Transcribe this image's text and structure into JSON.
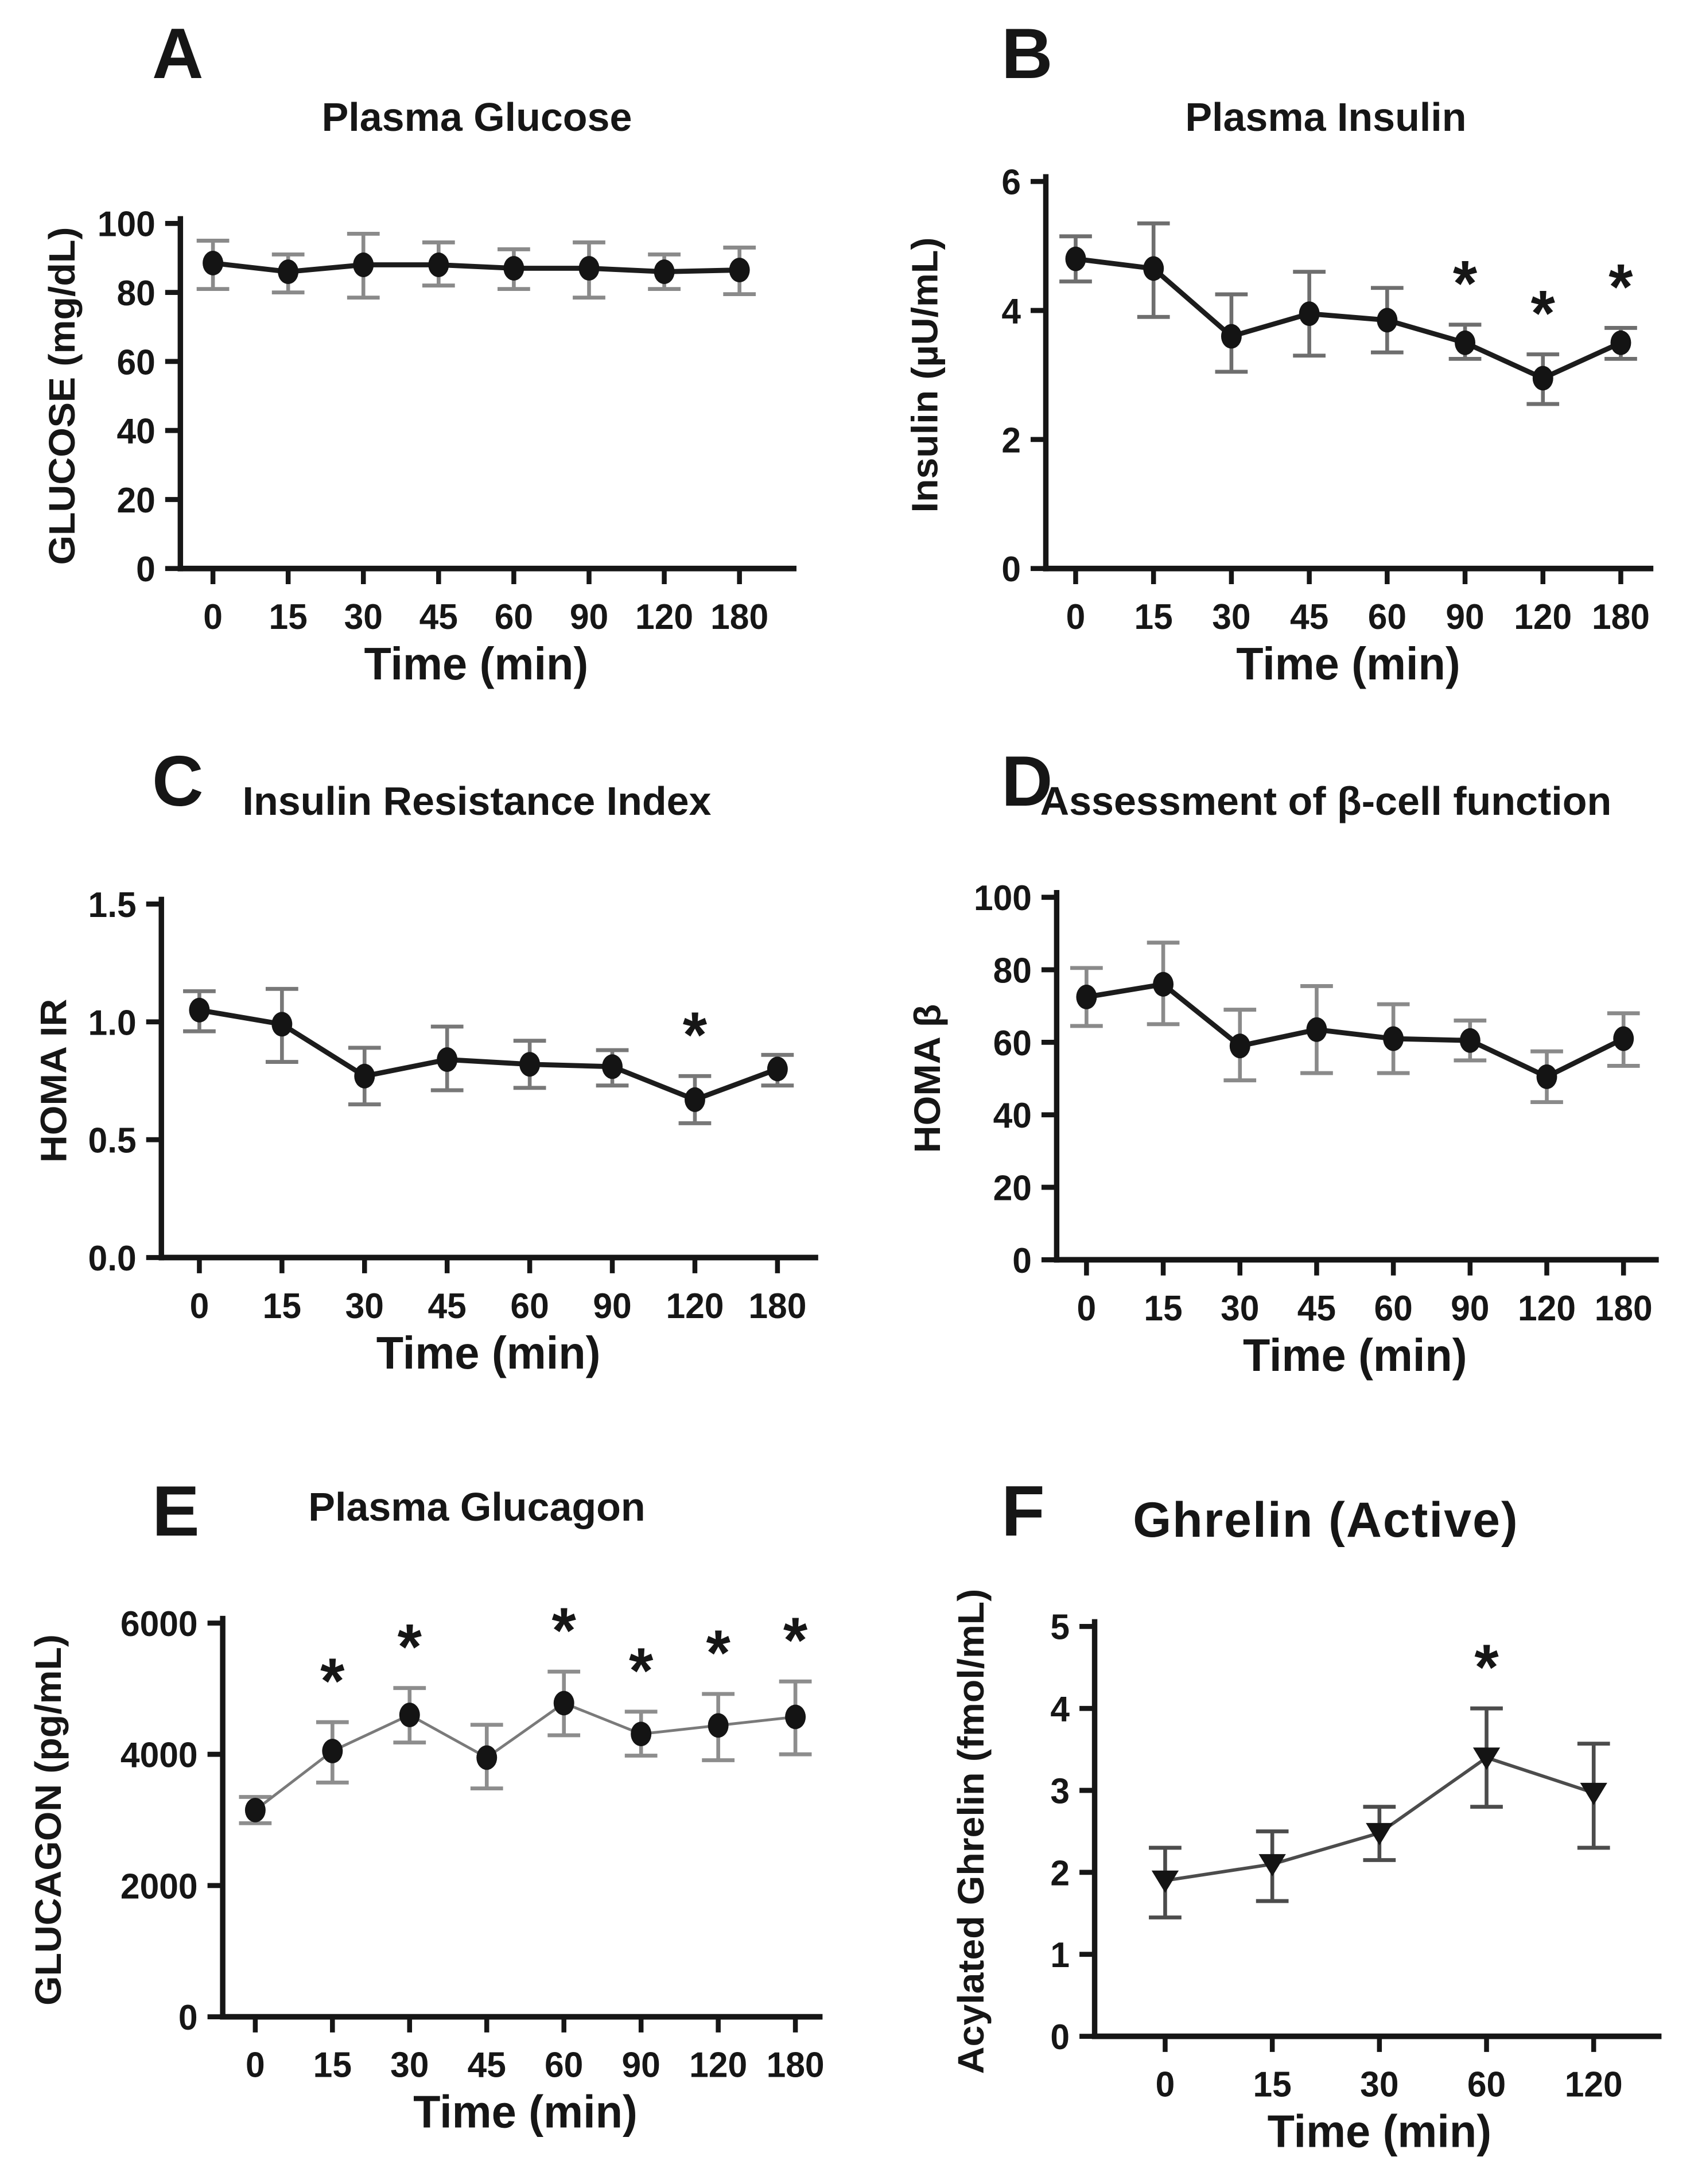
{
  "panels": [
    {
      "letter": "A",
      "title": "Plasma Glucose"
    },
    {
      "letter": "B",
      "title": "Plasma Insulin"
    },
    {
      "letter": "C",
      "title": "Insulin Resistance Index"
    },
    {
      "letter": "D",
      "title": "Assessment of β-cell function"
    },
    {
      "letter": "E",
      "title": "Plasma Glucagon"
    },
    {
      "letter": "F",
      "title": "Ghrelin (Active)"
    }
  ],
  "chart_data": [
    {
      "type": "line",
      "panel": "A",
      "title": "Plasma Glucose",
      "xlabel": "Time (min)",
      "ylabel": "GLUCOSE (mg/dL)",
      "x_tick_labels": [
        "0",
        "15",
        "30",
        "45",
        "60",
        "90",
        "120",
        "180"
      ],
      "yticks": [
        0,
        20,
        40,
        60,
        80,
        100
      ],
      "ytick_labels": [
        "0",
        "20",
        "40",
        "60",
        "80",
        "100"
      ],
      "ylim": [
        0,
        100
      ],
      "grid": false,
      "legend": false,
      "sig_symbol": "*",
      "series": [
        {
          "name": "Plasma glucose",
          "marker": "circle",
          "line_color": "#1c1c1c",
          "line_width": 9,
          "error_color": "#8a8a8a",
          "values": [
            88.5,
            86,
            88,
            88,
            87,
            87,
            86,
            86.5
          ],
          "err_low": [
            81,
            80,
            78.5,
            82,
            81,
            78.5,
            81,
            79.5
          ],
          "err_high": [
            95,
            91,
            97,
            94.5,
            92.5,
            94.5,
            91,
            93
          ],
          "significant": []
        }
      ]
    },
    {
      "type": "line",
      "panel": "B",
      "title": "Plasma Insulin",
      "xlabel": "Time (min)",
      "ylabel": "Insulin (µU/mL)",
      "x_tick_labels": [
        "0",
        "15",
        "30",
        "45",
        "60",
        "90",
        "120",
        "180"
      ],
      "yticks": [
        0,
        2,
        4,
        6
      ],
      "ytick_labels": [
        "0",
        "2",
        "4",
        "6"
      ],
      "ylim": [
        0,
        6
      ],
      "grid": false,
      "legend": false,
      "sig_symbol": "*",
      "series": [
        {
          "name": "Plasma insulin",
          "marker": "circle",
          "line_color": "#1c1c1c",
          "line_width": 9,
          "error_color": "#6e6e6e",
          "values": [
            4.8,
            4.65,
            3.6,
            3.95,
            3.85,
            3.5,
            2.95,
            3.5
          ],
          "err_low": [
            4.45,
            3.9,
            3.05,
            3.3,
            3.35,
            3.25,
            2.55,
            3.25
          ],
          "err_high": [
            5.15,
            5.35,
            4.25,
            4.6,
            4.35,
            3.78,
            3.32,
            3.73
          ],
          "significant": [
            "90",
            "120",
            "180"
          ]
        }
      ]
    },
    {
      "type": "line",
      "panel": "C",
      "title": "Insulin Resistance Index",
      "xlabel": "Time (min)",
      "ylabel": "HOMA IR",
      "x_tick_labels": [
        "0",
        "15",
        "30",
        "45",
        "60",
        "90",
        "120",
        "180"
      ],
      "yticks": [
        0,
        0.5,
        1.0,
        1.5
      ],
      "ytick_labels": [
        "0.0",
        "0.5",
        "1.0",
        "1.5"
      ],
      "ylim": [
        0,
        1.5
      ],
      "grid": false,
      "legend": false,
      "sig_symbol": "*",
      "series": [
        {
          "name": "HOMA IR",
          "marker": "circle",
          "line_color": "#1c1c1c",
          "line_width": 9,
          "error_color": "#787878",
          "values": [
            1.05,
            0.99,
            0.77,
            0.84,
            0.82,
            0.81,
            0.67,
            0.8
          ],
          "err_low": [
            0.96,
            0.83,
            0.65,
            0.71,
            0.72,
            0.73,
            0.57,
            0.73
          ],
          "err_high": [
            1.13,
            1.14,
            0.89,
            0.98,
            0.92,
            0.88,
            0.77,
            0.86
          ],
          "significant": [
            "120"
          ]
        }
      ]
    },
    {
      "type": "line",
      "panel": "D",
      "title": "Assessment of β-cell function",
      "xlabel": "Time (min)",
      "ylabel": "HOMA β",
      "x_tick_labels": [
        "0",
        "15",
        "30",
        "45",
        "60",
        "90",
        "120",
        "180"
      ],
      "yticks": [
        0,
        20,
        40,
        60,
        80,
        100
      ],
      "ytick_labels": [
        "0",
        "20",
        "40",
        "60",
        "80",
        "100"
      ],
      "ylim": [
        0,
        100
      ],
      "grid": false,
      "legend": false,
      "sig_symbol": "*",
      "series": [
        {
          "name": "HOMA beta",
          "marker": "circle",
          "line_color": "#1c1c1c",
          "line_width": 9,
          "error_color": "#8a8a8a",
          "values": [
            72.5,
            76,
            59,
            63.5,
            61,
            60.5,
            50.5,
            61
          ],
          "err_low": [
            64.5,
            65,
            49.5,
            51.5,
            51.5,
            55,
            43.5,
            53.5
          ],
          "err_high": [
            80.5,
            87.5,
            69,
            75.5,
            70.5,
            66,
            57.5,
            68
          ],
          "significant": []
        }
      ]
    },
    {
      "type": "line",
      "panel": "E",
      "title": "Plasma Glucagon",
      "xlabel": "Time (min)",
      "ylabel": "GLUCAGON (pg/mL)",
      "x_tick_labels": [
        "0",
        "15",
        "30",
        "45",
        "60",
        "90",
        "120",
        "180"
      ],
      "yticks": [
        0,
        2000,
        4000,
        6000
      ],
      "ytick_labels": [
        "0",
        "2000",
        "4000",
        "6000"
      ],
      "ylim": [
        0,
        6000
      ],
      "grid": false,
      "legend": false,
      "sig_symbol": "*",
      "series": [
        {
          "name": "Plasma glucagon",
          "marker": "circle",
          "line_color": "#7a7a7a",
          "line_width": 5,
          "error_color": "#8d8d8d",
          "values": [
            3150,
            4050,
            4600,
            3950,
            4780,
            4310,
            4440,
            4570
          ],
          "err_low": [
            2950,
            3570,
            4180,
            3480,
            4290,
            3980,
            3910,
            4000
          ],
          "err_high": [
            3350,
            4490,
            5010,
            4450,
            5260,
            4650,
            4920,
            5110
          ],
          "significant": [
            "15",
            "30",
            "60",
            "90",
            "120",
            "180"
          ]
        }
      ]
    },
    {
      "type": "line",
      "panel": "F",
      "title": "Ghrelin (Active)",
      "xlabel": "Time (min)",
      "ylabel": "Acylated Ghrelin (fmol/mL)",
      "x_tick_labels": [
        "0",
        "15",
        "30",
        "60",
        "120"
      ],
      "yticks": [
        0,
        1,
        2,
        3,
        4,
        5
      ],
      "ytick_labels": [
        "0",
        "1",
        "2",
        "3",
        "4",
        "5"
      ],
      "ylim": [
        0,
        5
      ],
      "grid": false,
      "legend": false,
      "sig_symbol": "*",
      "series": [
        {
          "name": "Acylated ghrelin",
          "marker": "triangle-down",
          "line_color": "#4c4c4c",
          "line_width": 6,
          "error_color": "#4c4c4c",
          "values": [
            1.9,
            2.1,
            2.48,
            3.4,
            2.97
          ],
          "err_low": [
            1.45,
            1.65,
            2.15,
            2.8,
            2.3
          ],
          "err_high": [
            2.3,
            2.5,
            2.8,
            4.0,
            3.57
          ],
          "significant": [
            "60"
          ]
        }
      ]
    }
  ]
}
